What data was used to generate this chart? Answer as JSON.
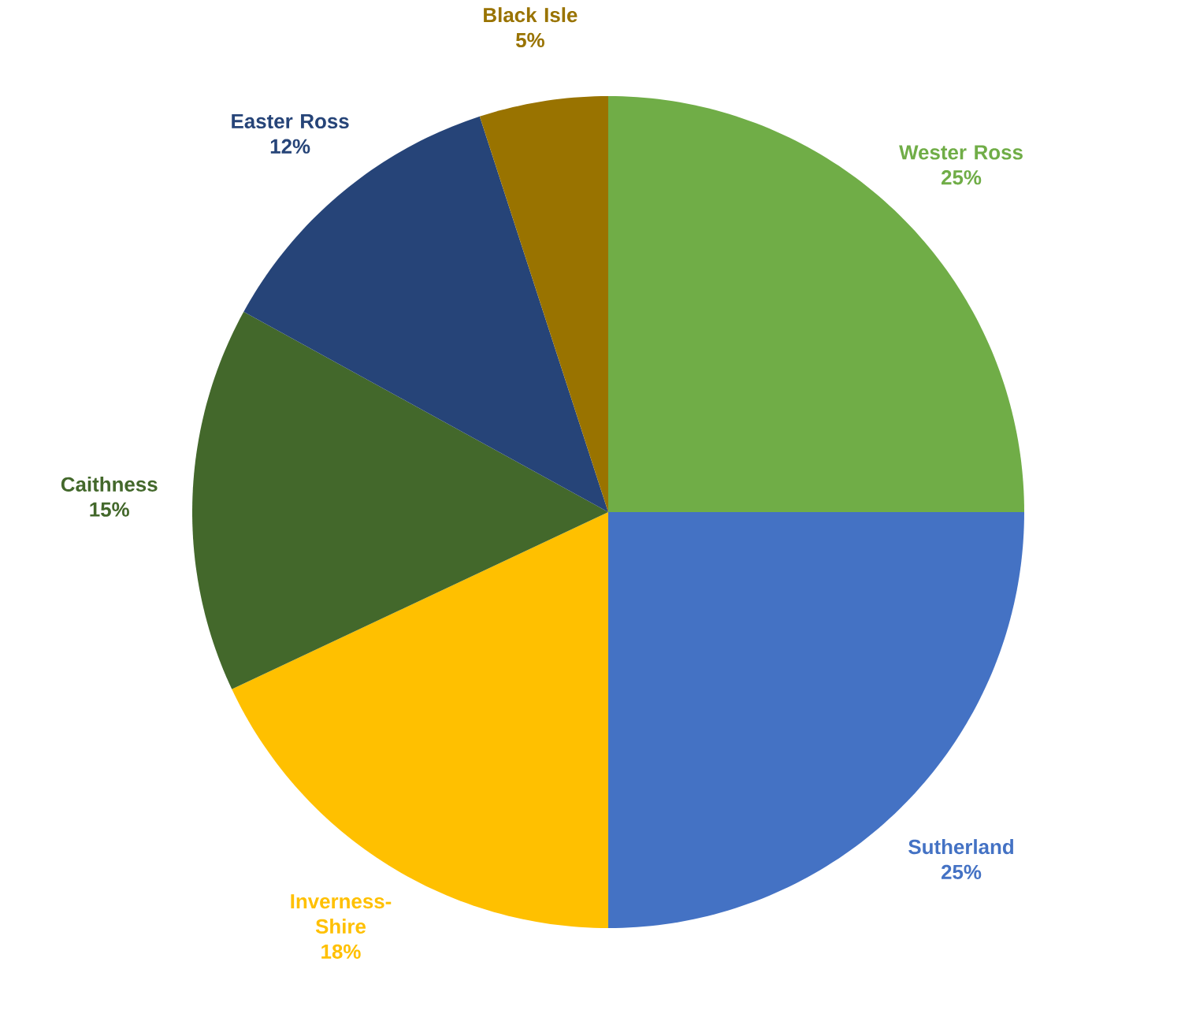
{
  "chart_data": {
    "type": "pie",
    "categories": [
      "Wester Ross",
      "Sutherland",
      "Inverness-Shire",
      "Caithness",
      "Easter Ross",
      "Black Isle"
    ],
    "values": [
      25,
      25,
      18,
      15,
      12,
      5
    ],
    "value_labels": [
      "25%",
      "25%",
      "18%",
      "15%",
      "12%",
      "5%"
    ],
    "colors": [
      "#70ad47",
      "#4472c4",
      "#ffc000",
      "#43682b",
      "#264478",
      "#997300"
    ]
  }
}
